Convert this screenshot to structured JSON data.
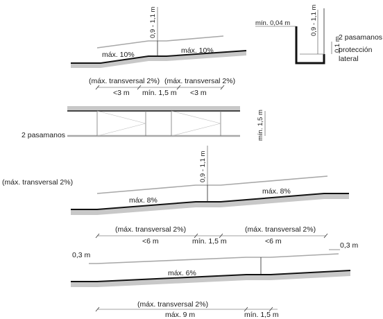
{
  "diagram": {
    "ramp10": {
      "handrail_height": "0,9 - 1,1 m",
      "slope_left": "máx. 10%",
      "slope_right": "máx. 10%",
      "cross_slope_left": "(máx. transversal 2%)",
      "cross_slope_right": "(máx. transversal 2%)",
      "run_left": "<3 m",
      "landing": "mín. 1,5 m",
      "run_right": "<3 m"
    },
    "section": {
      "edge_clearance": "mín. 0,04 m",
      "handrail_height": "0,9 - 1,1 m",
      "curb_height": "0,1 m",
      "handrails_label": "2 pasamanos",
      "protection_label_1": "protección",
      "protection_label_2": "lateral"
    },
    "plan": {
      "handrails_label": "2 pasamanos",
      "width": "mín. 1,5 m"
    },
    "ramp8": {
      "cross_slope_note": "(máx. transversal 2%)",
      "handrail_height": "0,9 - 1,1 m",
      "slope_left": "máx. 8%",
      "slope_right": "máx. 8%",
      "cross_slope_left": "(máx. transversal 2%)",
      "cross_slope_right": "(máx. transversal 2%)",
      "run_left": "<6 m",
      "landing": "mín. 1,5 m",
      "run_right": "<6 m"
    },
    "ramp6": {
      "extension_left": "0,3 m",
      "extension_right": "0,3 m",
      "slope": "máx. 6%",
      "cross_slope": "(máx. transversal 2%)",
      "run": "máx. 9 m",
      "landing": "mín. 1,5 m"
    }
  }
}
